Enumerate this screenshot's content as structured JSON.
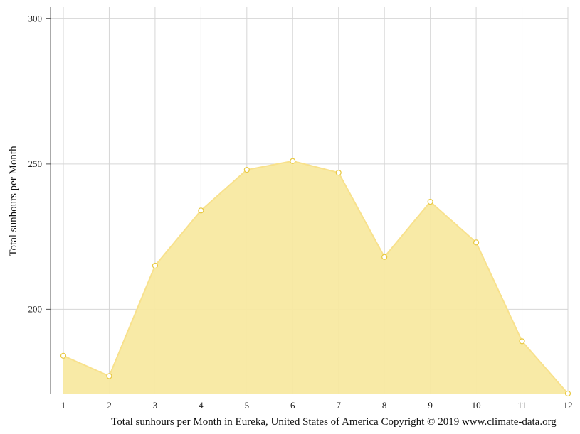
{
  "chart_data": {
    "type": "area",
    "title": "",
    "xlabel": "Total sunhours per Month in Eureka, United States of America Copyright © 2019 www.climate-data.org",
    "ylabel": "Total sunhours per Month",
    "x": [
      1,
      2,
      3,
      4,
      5,
      6,
      7,
      8,
      9,
      10,
      11,
      12
    ],
    "series": [
      {
        "values": [
          184,
          177,
          215,
          234,
          248,
          251,
          247,
          218,
          237,
          223,
          189,
          171
        ]
      }
    ],
    "y_ticks": [
      200,
      250,
      300
    ],
    "ylim": [
      171,
      304
    ],
    "grid": true,
    "colors": {
      "fill": "#f8e9a1",
      "line": "#f8e18c",
      "marker_fill": "#ffffff",
      "marker_stroke": "#e8c840",
      "grid": "#d6d6d6",
      "axis": "#555555"
    }
  }
}
